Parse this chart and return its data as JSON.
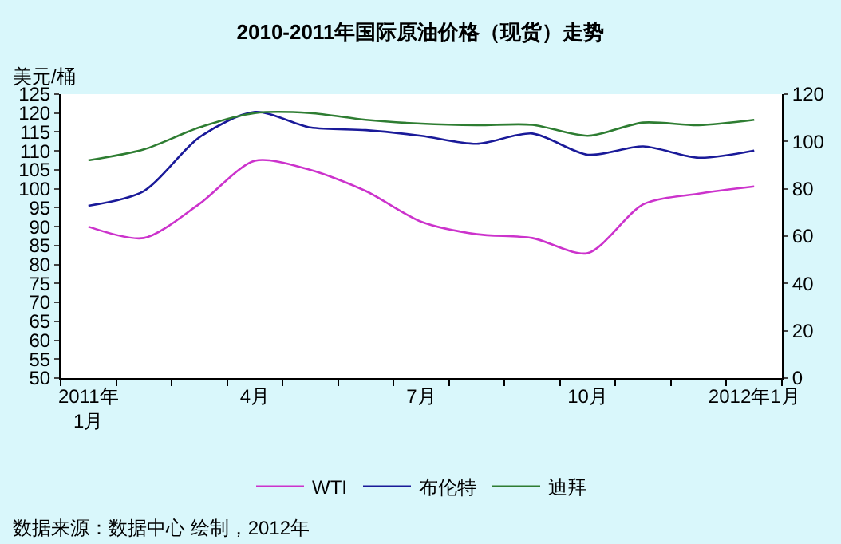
{
  "chart_data": {
    "type": "line",
    "title": "2010-2011年国际原油价格（现货）走势",
    "ylabel": "美元/桶",
    "categories": [
      "2011年\n1月",
      null,
      null,
      "4月",
      null,
      null,
      "7月",
      null,
      null,
      "10月",
      null,
      null,
      "2012年1月"
    ],
    "series": [
      {
        "name": "WTI",
        "color": "#cc33cc",
        "values": [
          90,
          87,
          96,
          107.4,
          105,
          99.4,
          91.3,
          88,
          87,
          83,
          95.9,
          98.7,
          100.6
        ]
      },
      {
        "name": "布伦特",
        "color": "#1a1a99",
        "values": [
          95.5,
          99.4,
          113.6,
          120.3,
          116.2,
          115.5,
          114,
          111.9,
          114.6,
          109,
          111.2,
          108.2,
          110.1
        ]
      },
      {
        "name": "迪拜",
        "color": "#2e7d32",
        "values": [
          107.5,
          110.4,
          116.2,
          120,
          120,
          118.2,
          117.2,
          116.8,
          116.9,
          114,
          117.5,
          116.8,
          118.2
        ]
      }
    ],
    "ylim": [
      50,
      125
    ],
    "yticks": [
      50,
      55,
      60,
      65,
      70,
      75,
      80,
      85,
      90,
      95,
      100,
      105,
      110,
      115,
      120,
      125
    ],
    "y2lim": [
      0,
      120
    ],
    "y2ticks": [
      0,
      20,
      40,
      60,
      80,
      100,
      120
    ],
    "grid": false,
    "legend": "bottom",
    "marker": "none",
    "line_style": "solid",
    "annotations": [
      "数据来源：数据中心 绘制，2012年"
    ]
  }
}
